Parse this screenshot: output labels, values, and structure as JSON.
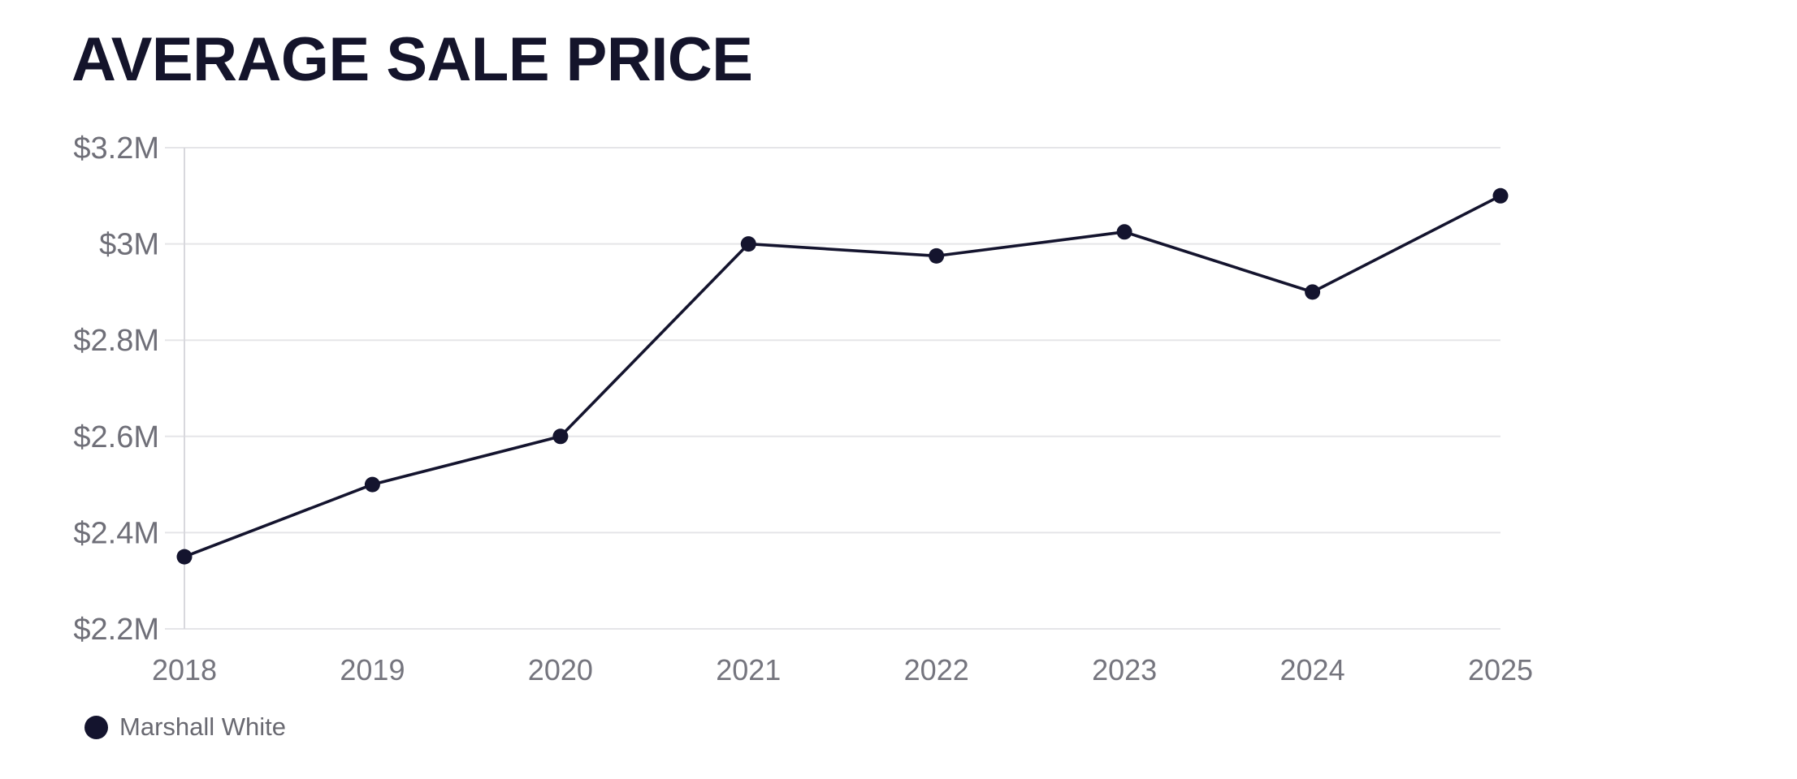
{
  "header": {
    "title": "AVERAGE SALE PRICE"
  },
  "legend": {
    "label": "Marshall White"
  },
  "colors": {
    "series_navy": "#14142e",
    "title_navy": "#14142b",
    "tick_label_gray": "#6f6f78",
    "x_label_gray": "#75757e",
    "legend_text_gray": "#696971",
    "gridline_gray": "#e5e5e8",
    "axis_line_gray": "#d8d8dd",
    "background": "#ffffff"
  },
  "chart_data": {
    "type": "line",
    "title": "AVERAGE SALE PRICE",
    "categories": [
      "2018",
      "2019",
      "2020",
      "2021",
      "2022",
      "2023",
      "2024",
      "2025"
    ],
    "series": [
      {
        "name": "Marshall White",
        "values": [
          2.35,
          2.5,
          2.6,
          3.0,
          2.975,
          3.025,
          2.9,
          3.1
        ],
        "color": "#14142e",
        "marker": "filled-circle"
      }
    ],
    "xlabel": "",
    "ylabel": "",
    "ylim": [
      2.2,
      3.2
    ],
    "y_ticks": [
      {
        "label": "$3.2M",
        "value": 3.2
      },
      {
        "label": "$3M",
        "value": 3.0
      },
      {
        "label": "$2.8M",
        "value": 2.8
      },
      {
        "label": "$2.6M",
        "value": 2.6
      },
      {
        "label": "$2.4M",
        "value": 2.4
      },
      {
        "label": "$2.2M",
        "value": 2.2
      }
    ],
    "value_unit": "USD millions",
    "grid": "horizontal",
    "left_axis_line": true,
    "legend_position": "bottom-left"
  }
}
